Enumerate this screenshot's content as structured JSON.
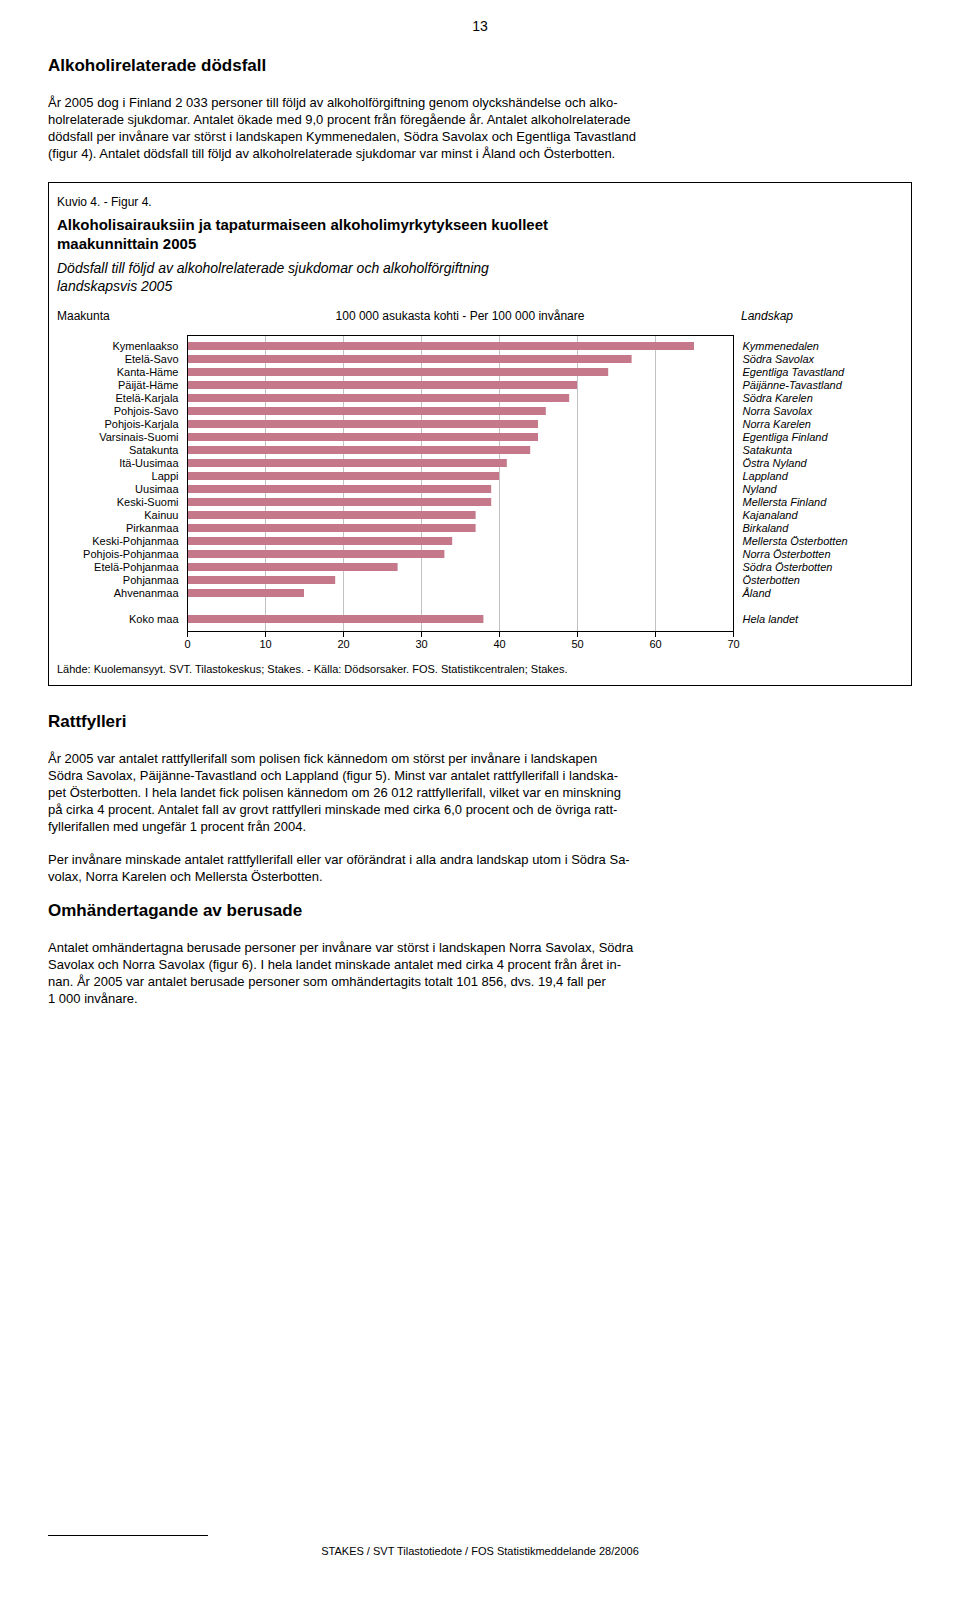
{
  "page_number": "13",
  "text_before": [
    {
      "header": "Alkoholirelaterade dödsfall",
      "paragraphs": [
        [
          "År 2005 dog i Finland 2 033 personer till följd av alkoholförgiftning genom olyckshändelse och alko-",
          "holrelaterade sjukdomar. Antalet ökade med 9,0 procent från föregående år. Antalet alkoholrelaterade",
          "dödsfall per invånare var störst i landskapen Kymmenedalen, Södra Savolax och Egentliga Tavastland",
          "(figur 4). Antalet dödsfall till följd av alkoholrelaterade sjukdomar var minst i Åland och Österbotten."
        ]
      ]
    }
  ],
  "chart_data": {
    "type": "bar",
    "orientation": "horizontal",
    "figure_label": "Kuvio 4. - ​Figur 4.",
    "title": "Alkoholisairauksiin ja tapaturmaiseen alkoholimyrkytykseen kuolleet\nmaakunnittain 2005",
    "subtitle": "Dödsfall till följd av alkoholrelaterade sjukdomar och alkoholförgiftning\nlandskapsvis 2005",
    "category_header": "Maakunta",
    "category_header_right": "Landskap",
    "xlabel": "100 000 asukasta kohti - Per 100 000 invånare",
    "categories": [
      "Kymenlaakso",
      "Etelä-Savo",
      "Kanta-Häme",
      "Päijät-Häme",
      "Etelä-Karjala",
      "Pohjois-Savo",
      "Pohjois-Karjala",
      "Varsinais-Suomi",
      "Satakunta",
      "Itä-Uusimaa",
      "Lappi",
      "Uusimaa",
      "Keski-Suomi",
      "Kainuu",
      "Pirkanmaa",
      "Keski-Pohjanmaa",
      "Pohjois-Pohjanmaa",
      "Etelä-Pohjanmaa",
      "Pohjanmaa",
      "Ahvenanmaa",
      null,
      "Koko maa"
    ],
    "categories_right": [
      "Kymmenedalen",
      "Södra Savolax",
      "Egentliga Tavastland",
      "Päijänne-Tavastland",
      "Södra Karelen",
      "Norra Savolax",
      "Norra Karelen",
      "Egentliga Finland",
      "Satakunta",
      "Östra Nyland",
      "Lappland",
      "Nyland",
      "Mellersta Finland",
      "Kajanaland",
      "Birkaland",
      "Mellersta Österbotten",
      "Norra Österbotten",
      "Södra Österbotten",
      "Österbotten",
      "Åland",
      null,
      "Hela landet"
    ],
    "values": [
      65,
      57,
      54,
      50,
      49,
      46,
      45,
      45,
      44,
      41,
      40,
      39,
      39,
      37,
      37,
      34,
      33,
      27,
      19,
      15,
      null,
      38
    ],
    "color": "#c4788a",
    "xlim": [
      0,
      70
    ],
    "xticks": [
      0,
      10,
      20,
      30,
      40,
      50,
      60,
      70
    ],
    "grid": true,
    "source": "Lähde: Kuolemansyyt. SVT. Tilastokeskus; Stakes. - Källa: Dödsorsaker. FOS. Statistikcentralen; Stakes."
  },
  "text_after": [
    {
      "header": "Rattfylleri",
      "paragraphs": [
        [
          "År 2005 var antalet rattfyllerifall som polisen fick kännedom om störst per invånare i landskapen",
          "Södra Savolax, Päijänne-Tavastland och Lappland (figur 5). Minst var antalet rattfyllerifall i landska-",
          "pet Österbotten. I hela landet fick polisen kännedom om 26 012 rattfyllerifall, vilket var en minskning",
          "på cirka 4 procent. Antalet fall av grovt rattfylleri minskade med cirka 6,0 procent och de övriga ratt-",
          "fyllerifallen med ungefär 1 procent från 2004."
        ],
        [
          "Per invånare minskade antalet rattfyllerifall eller var oförändrat i alla andra landskap utom i Södra Sa-",
          "volax, Norra Karelen och Mellersta Österbotten."
        ]
      ]
    },
    {
      "header": "Omhändertagande av berusade",
      "paragraphs": [
        [
          "Antalet omhändertagna berusade personer per invånare var störst i landskapen Norra Savolax, Södra",
          "Savolax och Norra Savolax (figur 6). I hela landet minskade antalet med cirka 4 procent från året in-",
          "nan. År 2005 var antalet berusade personer som omhändertagits totalt 101 856, dvs. 19,4 fall per",
          "1 000 invånare."
        ]
      ]
    }
  ],
  "footer": "STAKES / SVT Tilastotiedote / FOS Statistikmeddelande 28/2006"
}
